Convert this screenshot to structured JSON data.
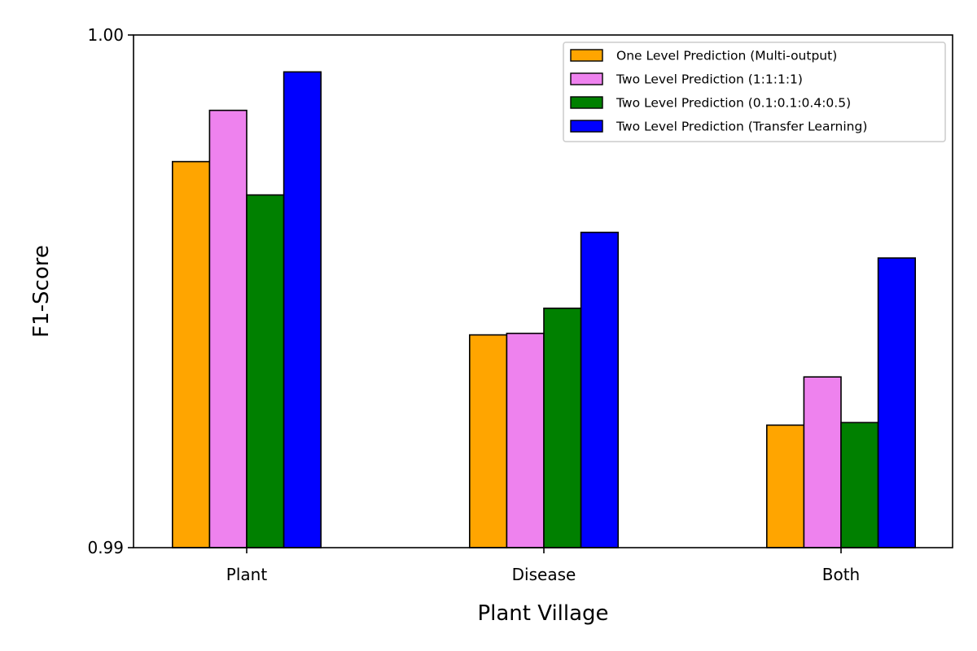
{
  "chart_data": {
    "type": "bar",
    "title": "",
    "xlabel": "Plant Village",
    "ylabel": "F1-Score",
    "categories": [
      "Plant",
      "Disease",
      "Both"
    ],
    "ylim": [
      0.99,
      1.0
    ],
    "yticks": [
      "0.99",
      "1.00"
    ],
    "ytick_values": [
      0.99,
      1.0
    ],
    "legend_position": "top-right",
    "grid": false,
    "series": [
      {
        "name": "One Level Prediction (Multi-output)",
        "color": "#FFA500",
        "values": [
          0.99753,
          0.99415,
          0.99239
        ]
      },
      {
        "name": "Two Level Prediction (1:1:1:1)",
        "color": "#EE82EE",
        "values": [
          0.99853,
          0.99418,
          0.99333
        ]
      },
      {
        "name": "Two Level Prediction (0.1:0.1:0.4:0.5)",
        "color": "#008000",
        "values": [
          0.99688,
          0.99467,
          0.99244
        ]
      },
      {
        "name": "Two Level Prediction (Transfer Learning)",
        "color": "#0000FF",
        "values": [
          0.99928,
          0.99615,
          0.99565
        ]
      }
    ]
  }
}
